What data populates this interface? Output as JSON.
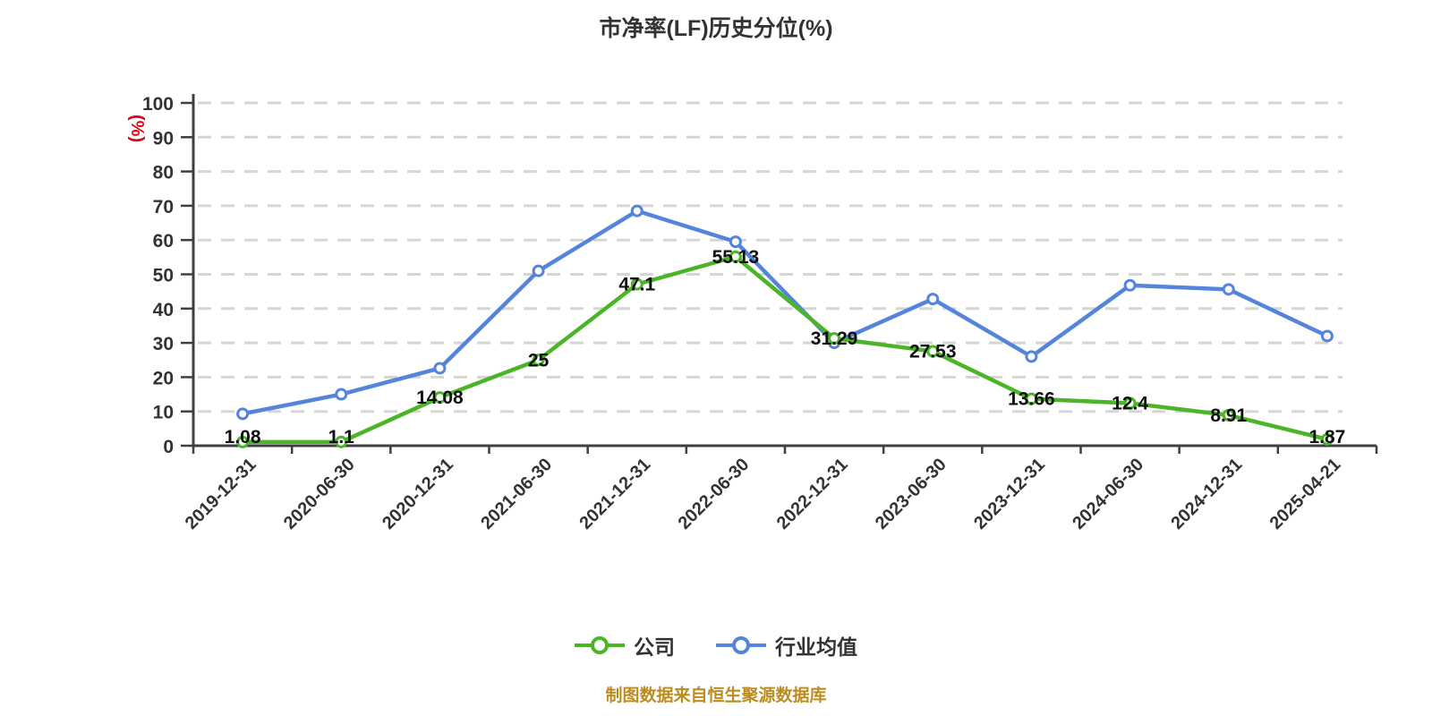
{
  "chart_data": {
    "type": "line",
    "title": "市净率(LF)历史分位(%)",
    "xlabel": "",
    "ylabel": "(%)",
    "ylim": [
      0,
      100
    ],
    "y_ticks": [
      0,
      10,
      20,
      30,
      40,
      50,
      60,
      70,
      80,
      90,
      100
    ],
    "grid": true,
    "grid_style": "dashed",
    "legend_position": "bottom",
    "categories": [
      "2019-12-31",
      "2020-06-30",
      "2020-12-31",
      "2021-06-30",
      "2021-12-31",
      "2022-06-30",
      "2022-12-31",
      "2023-06-30",
      "2023-12-31",
      "2024-06-30",
      "2024-12-31",
      "2025-04-21"
    ],
    "series": [
      {
        "name": "公司",
        "key": "company",
        "color": "#4bb527",
        "values": [
          1.08,
          1.1,
          14.08,
          25,
          47.1,
          55.13,
          31.29,
          27.53,
          13.66,
          12.4,
          8.91,
          1.87
        ],
        "point_labels": [
          "1.08",
          "1.1",
          "14.08",
          "25",
          "47.1",
          "55.13",
          "31.29",
          "27.53",
          "13.66",
          "12.4",
          "8.91",
          "1.87"
        ]
      },
      {
        "name": "行业均值",
        "key": "industry-average",
        "color": "#5484dc",
        "values": [
          9.3,
          15,
          22.6,
          51,
          68.5,
          59.5,
          30,
          42.8,
          26,
          46.8,
          45.6,
          32
        ],
        "point_labels": null
      }
    ]
  },
  "footer": {
    "text": "制图数据来自恒生聚源数据库",
    "color": "#bd8c1f"
  },
  "colors": {
    "grid": "#d5d5d5",
    "axis": "#3f3f41",
    "tick_text": "#333336",
    "data_label": "#101010",
    "unit_label": "#e60012"
  }
}
